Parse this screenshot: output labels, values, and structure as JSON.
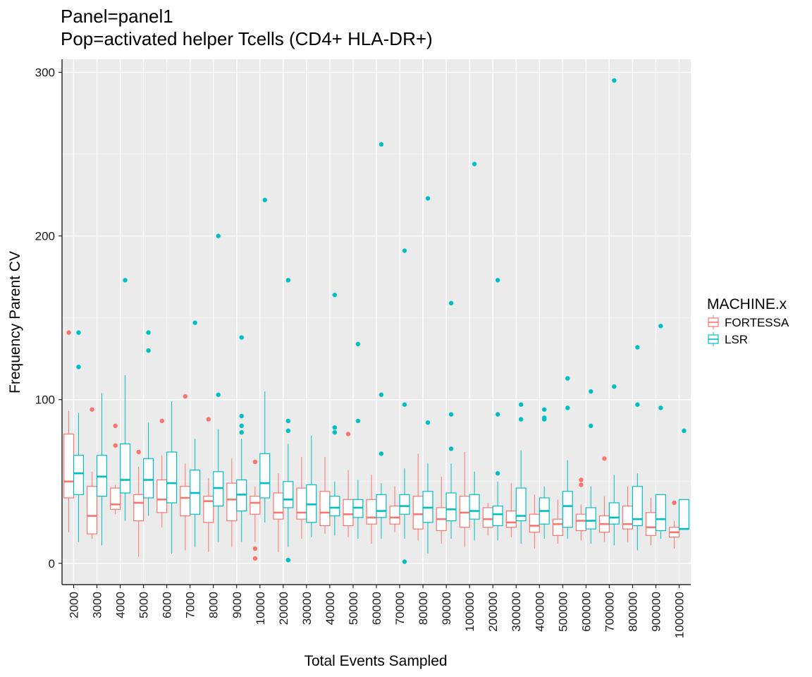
{
  "chart_data": {
    "type": "boxplot",
    "title": "Panel=panel1",
    "subtitle": "Pop=activated helper Tcells (CD4+ HLA-DR+)",
    "xlabel": "Total Events Sampled",
    "ylabel": "Frequency Parent CV",
    "ylim": [
      -13,
      308
    ],
    "yticks": [
      0,
      100,
      200,
      300
    ],
    "grid": true,
    "legend": {
      "title": "MACHINE.x",
      "position": "right"
    },
    "categories": [
      "2000",
      "3000",
      "4000",
      "5000",
      "6000",
      "7000",
      "8000",
      "9000",
      "10000",
      "20000",
      "30000",
      "40000",
      "50000",
      "60000",
      "70000",
      "80000",
      "90000",
      "100000",
      "200000",
      "300000",
      "400000",
      "500000",
      "600000",
      "700000",
      "800000",
      "900000",
      "1000000"
    ],
    "series": [
      {
        "name": "FORTESSA",
        "color": "#F8766D",
        "boxes": [
          {
            "min": 19,
            "q1": 40,
            "median": 50,
            "q3": 79,
            "max": 93,
            "outliers": [
              141
            ]
          },
          {
            "min": 15,
            "q1": 18,
            "median": 29,
            "q3": 47,
            "max": 56,
            "outliers": [
              94
            ]
          },
          {
            "min": 30,
            "q1": 33,
            "median": 36,
            "q3": 46,
            "max": 48,
            "outliers": [
              84,
              72
            ]
          },
          {
            "min": 4,
            "q1": 26,
            "median": 37,
            "q3": 42,
            "max": 59,
            "outliers": [
              68
            ]
          },
          {
            "min": 22,
            "q1": 31,
            "median": 39,
            "q3": 51,
            "max": 66,
            "outliers": [
              87
            ]
          },
          {
            "min": 8,
            "q1": 29,
            "median": 40,
            "q3": 47,
            "max": 61,
            "outliers": [
              102
            ]
          },
          {
            "min": 7,
            "q1": 25,
            "median": 38,
            "q3": 41,
            "max": 52,
            "outliers": [
              88
            ]
          },
          {
            "min": 10,
            "q1": 26,
            "median": 39,
            "q3": 49,
            "max": 64,
            "outliers": []
          },
          {
            "min": 13,
            "q1": 30,
            "median": 37,
            "q3": 41,
            "max": 47,
            "outliers": [
              62,
              9,
              3
            ]
          },
          {
            "min": 7,
            "q1": 27,
            "median": 31,
            "q3": 43,
            "max": 55,
            "outliers": []
          },
          {
            "min": 15,
            "q1": 27,
            "median": 31,
            "q3": 46,
            "max": 65,
            "outliers": []
          },
          {
            "min": 18,
            "q1": 23,
            "median": 31,
            "q3": 44,
            "max": 65,
            "outliers": []
          },
          {
            "min": 16,
            "q1": 23,
            "median": 30,
            "q3": 39,
            "max": 57,
            "outliers": [
              79
            ]
          },
          {
            "min": 12,
            "q1": 24,
            "median": 28,
            "q3": 39,
            "max": 54,
            "outliers": []
          },
          {
            "min": 19,
            "q1": 24,
            "median": 28,
            "q3": 35,
            "max": 47,
            "outliers": []
          },
          {
            "min": 14,
            "q1": 21,
            "median": 30,
            "q3": 41,
            "max": 67,
            "outliers": []
          },
          {
            "min": 12,
            "q1": 20,
            "median": 27,
            "q3": 34,
            "max": 53,
            "outliers": []
          },
          {
            "min": 10,
            "q1": 22,
            "median": 31,
            "q3": 41,
            "max": 68,
            "outliers": []
          },
          {
            "min": 17,
            "q1": 22,
            "median": 27,
            "q3": 34,
            "max": 37,
            "outliers": []
          },
          {
            "min": 16,
            "q1": 22,
            "median": 25,
            "q3": 32,
            "max": 49,
            "outliers": []
          },
          {
            "min": 9,
            "q1": 19,
            "median": 23,
            "q3": 30,
            "max": 42,
            "outliers": []
          },
          {
            "min": 12,
            "q1": 17,
            "median": 24,
            "q3": 27,
            "max": 39,
            "outliers": []
          },
          {
            "min": 14,
            "q1": 20,
            "median": 26,
            "q3": 30,
            "max": 36,
            "outliers": [
              51,
              48
            ]
          },
          {
            "min": 13,
            "q1": 19,
            "median": 24,
            "q3": 29,
            "max": 41,
            "outliers": [
              64
            ]
          },
          {
            "min": 13,
            "q1": 21,
            "median": 24,
            "q3": 35,
            "max": 47,
            "outliers": []
          },
          {
            "min": 11,
            "q1": 17,
            "median": 22,
            "q3": 31,
            "max": 40,
            "outliers": []
          },
          {
            "min": 9,
            "q1": 16,
            "median": 19,
            "q3": 22,
            "max": 26,
            "outliers": [
              37
            ]
          }
        ]
      },
      {
        "name": "LSR",
        "color": "#00BFC4",
        "boxes": [
          {
            "min": 13,
            "q1": 42,
            "median": 55,
            "q3": 66,
            "max": 92,
            "outliers": [
              141,
              120
            ]
          },
          {
            "min": 11,
            "q1": 41,
            "median": 53,
            "q3": 66,
            "max": 104,
            "outliers": []
          },
          {
            "min": 26,
            "q1": 43,
            "median": 51,
            "q3": 73,
            "max": 115,
            "outliers": [
              173
            ]
          },
          {
            "min": 29,
            "q1": 40,
            "median": 51,
            "q3": 64,
            "max": 86,
            "outliers": [
              141,
              130
            ]
          },
          {
            "min": 6,
            "q1": 37,
            "median": 49,
            "q3": 68,
            "max": 99,
            "outliers": []
          },
          {
            "min": 10,
            "q1": 30,
            "median": 43,
            "q3": 57,
            "max": 76,
            "outliers": [
              147
            ]
          },
          {
            "min": 13,
            "q1": 35,
            "median": 46,
            "q3": 56,
            "max": 82,
            "outliers": [
              200,
              103
            ]
          },
          {
            "min": 13,
            "q1": 32,
            "median": 42,
            "q3": 51,
            "max": 76,
            "outliers": [
              138,
              90,
              84,
              80
            ]
          },
          {
            "min": 25,
            "q1": 40,
            "median": 49,
            "q3": 67,
            "max": 105,
            "outliers": [
              222
            ]
          },
          {
            "min": 10,
            "q1": 34,
            "median": 39,
            "q3": 50,
            "max": 73,
            "outliers": [
              173,
              87,
              81,
              2
            ]
          },
          {
            "min": 16,
            "q1": 25,
            "median": 36,
            "q3": 48,
            "max": 78,
            "outliers": []
          },
          {
            "min": 17,
            "q1": 29,
            "median": 34,
            "q3": 41,
            "max": 50,
            "outliers": [
              164,
              83,
              80
            ]
          },
          {
            "min": 15,
            "q1": 28,
            "median": 34,
            "q3": 39,
            "max": 51,
            "outliers": [
              134,
              87
            ]
          },
          {
            "min": 15,
            "q1": 28,
            "median": 32,
            "q3": 42,
            "max": 49,
            "outliers": [
              256,
              103,
              67
            ]
          },
          {
            "min": 15,
            "q1": 30,
            "median": 35,
            "q3": 42,
            "max": 58,
            "outliers": [
              191,
              97,
              1
            ]
          },
          {
            "min": 6,
            "q1": 25,
            "median": 34,
            "q3": 44,
            "max": 61,
            "outliers": [
              223,
              86
            ]
          },
          {
            "min": 15,
            "q1": 26,
            "median": 33,
            "q3": 43,
            "max": 61,
            "outliers": [
              159,
              91,
              70
            ]
          },
          {
            "min": 14,
            "q1": 27,
            "median": 32,
            "q3": 42,
            "max": 56,
            "outliers": [
              244
            ]
          },
          {
            "min": 14,
            "q1": 23,
            "median": 30,
            "q3": 35,
            "max": 50,
            "outliers": [
              173,
              91,
              55
            ]
          },
          {
            "min": 12,
            "q1": 26,
            "median": 29,
            "q3": 46,
            "max": 69,
            "outliers": [
              97,
              88
            ]
          },
          {
            "min": 15,
            "q1": 24,
            "median": 32,
            "q3": 40,
            "max": 47,
            "outliers": [
              94,
              89,
              88
            ]
          },
          {
            "min": 15,
            "q1": 22,
            "median": 35,
            "q3": 44,
            "max": 63,
            "outliers": [
              113,
              95
            ]
          },
          {
            "min": 12,
            "q1": 21,
            "median": 26,
            "q3": 34,
            "max": 47,
            "outliers": [
              105,
              84
            ]
          },
          {
            "min": 11,
            "q1": 24,
            "median": 28,
            "q3": 37,
            "max": 54,
            "outliers": [
              295,
              108
            ]
          },
          {
            "min": 8,
            "q1": 23,
            "median": 27,
            "q3": 47,
            "max": 55,
            "outliers": [
              132,
              97
            ]
          },
          {
            "min": 15,
            "q1": 20,
            "median": 27,
            "q3": 42,
            "max": 42,
            "outliers": [
              145,
              95
            ]
          },
          {
            "min": 21,
            "q1": 21,
            "median": 21,
            "q3": 39,
            "max": 39,
            "outliers": [
              81
            ]
          }
        ]
      }
    ]
  }
}
